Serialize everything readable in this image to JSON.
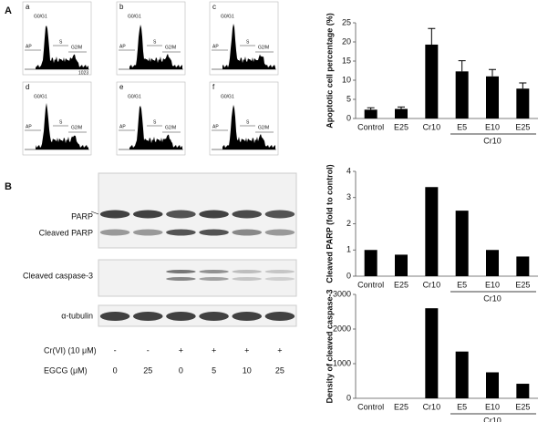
{
  "panel_labels": [
    "A",
    "B"
  ],
  "histograms": {
    "panels": [
      "a",
      "b",
      "c",
      "d",
      "e",
      "f"
    ],
    "peak_labels": [
      "G0/G1",
      "S",
      "G2/M",
      "AP"
    ],
    "axis_max": "1023"
  },
  "blot": {
    "rows": [
      "PARP",
      "Cleaved PARP",
      "Cleaved caspase-3",
      "α-tubulin"
    ],
    "treatments": [
      {
        "label": "Cr(VI) (10 μM)",
        "values": [
          "-",
          "-",
          "+",
          "+",
          "+",
          "+"
        ]
      },
      {
        "label": "EGCG (μM)",
        "values": [
          "0",
          "25",
          "0",
          "5",
          "10",
          "25"
        ]
      }
    ]
  },
  "chart_data": [
    {
      "type": "bar",
      "ylabel": "Apoptotic cell percentage (%)",
      "categories": [
        "Control",
        "E25",
        "Cr10",
        "E5",
        "E10",
        "E25"
      ],
      "group_label": "Cr10",
      "values": [
        2.3,
        2.5,
        19.3,
        12.3,
        11.0,
        7.8
      ],
      "errors": [
        0.5,
        0.5,
        4.2,
        2.8,
        1.8,
        1.5
      ],
      "color": "#000000",
      "ylim": [
        0,
        25
      ],
      "yticks": [
        0,
        5,
        10,
        15,
        20,
        25
      ]
    },
    {
      "type": "bar",
      "ylabel": "Cleaved PARP (fold to control)",
      "categories": [
        "Control",
        "E25",
        "Cr10",
        "E5",
        "E10",
        "E25"
      ],
      "group_label": "Cr10",
      "values": [
        1.0,
        0.82,
        3.4,
        2.5,
        1.0,
        0.75
      ],
      "color": "#000000",
      "ylim": [
        0,
        4
      ],
      "yticks": [
        0,
        1,
        2,
        3,
        4
      ]
    },
    {
      "type": "bar",
      "ylabel": "Density of cleaved caspase-3",
      "categories": [
        "Control",
        "E25",
        "Cr10",
        "E5",
        "E10",
        "E25"
      ],
      "group_label": "Cr10",
      "values": [
        0,
        0,
        2600,
        1350,
        750,
        420
      ],
      "color": "#000000",
      "ylim": [
        0,
        3000
      ],
      "yticks": [
        0,
        1000,
        2000,
        3000
      ]
    }
  ]
}
